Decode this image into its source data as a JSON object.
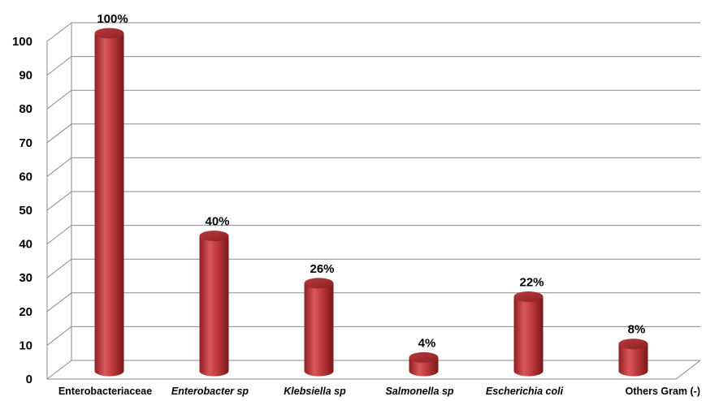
{
  "chart_data": {
    "type": "bar",
    "style": "3d-cylinder",
    "categories": [
      "Enterobacteriaceae",
      "Enterobacter sp",
      "Klebsiella sp",
      "Salmonella sp",
      "Escherichia coli",
      "Others Gram (-)"
    ],
    "category_italic": [
      false,
      true,
      true,
      true,
      true,
      false
    ],
    "values": [
      100,
      40,
      26,
      4,
      22,
      8
    ],
    "data_labels": [
      "100%",
      "40%",
      "26%",
      "4%",
      "22%",
      "8%"
    ],
    "yticks": [
      0,
      10,
      20,
      30,
      40,
      50,
      60,
      70,
      80,
      90,
      100
    ],
    "ylim": [
      0,
      100
    ],
    "grid": true,
    "legend": "none",
    "bar_color": "#c0393b",
    "title": "",
    "xlabel": "",
    "ylabel": ""
  }
}
